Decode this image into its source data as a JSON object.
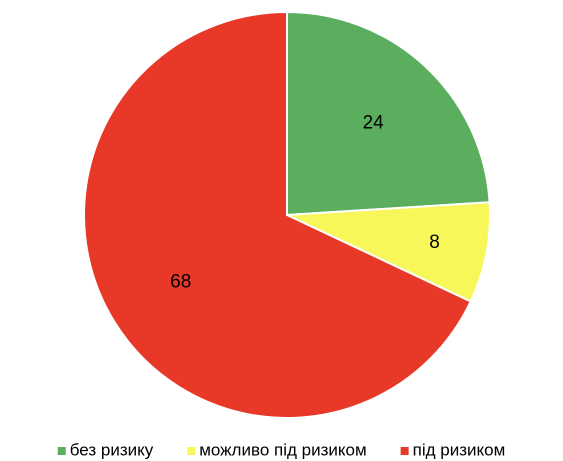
{
  "chart_data": {
    "type": "pie",
    "categories": [
      "без ризику",
      "можливо під ризиком",
      "під ризиком"
    ],
    "values": [
      24,
      8,
      68
    ],
    "colors": [
      "#5aae5e",
      "#f7f75a",
      "#e83828"
    ],
    "legend": "bottom"
  }
}
